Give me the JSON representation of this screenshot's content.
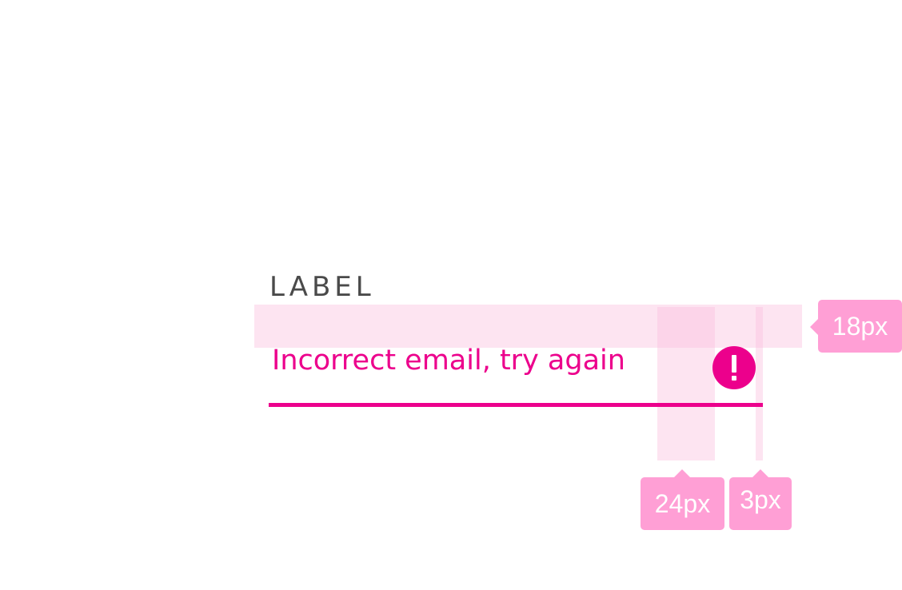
{
  "field": {
    "label": "LABEL",
    "value": "Incorrect email, try again",
    "state": "error",
    "error_icon": "exclamation-circle-icon"
  },
  "spec": {
    "label_gap": "18px",
    "icon_size": "24px",
    "icon_gap": "3px"
  },
  "colors": {
    "error": "#ec008c",
    "label": "#4a4a4a",
    "spec_tag": "#ff9fd5",
    "spec_band": "#fbbede"
  }
}
